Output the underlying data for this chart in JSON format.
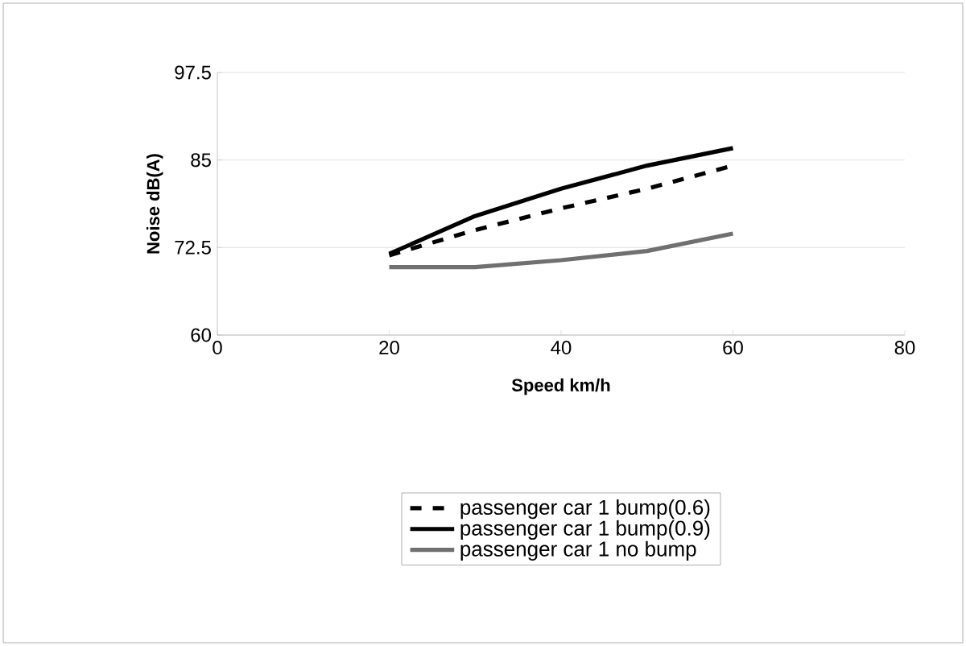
{
  "chart_data": {
    "type": "line",
    "xlabel": "Speed km/h",
    "ylabel": "Noise dB(A)",
    "xlim": [
      0,
      80
    ],
    "xticks": [
      0,
      20,
      40,
      60,
      80
    ],
    "ylim": [
      60,
      97.5
    ],
    "yticks": [
      60,
      72.5,
      85,
      97.5
    ],
    "grid": "y",
    "legend": "bottom",
    "series": [
      {
        "name": "passenger car 1 bump(0.6)",
        "color": "#000000",
        "line_style": "dashed",
        "x": [
          20,
          30,
          40,
          50,
          60
        ],
        "values": [
          71.4,
          75.0,
          78.1,
          80.9,
          84.2
        ]
      },
      {
        "name": "passenger car 1 bump(0.9)",
        "color": "#000000",
        "line_style": "solid",
        "x": [
          20,
          30,
          40,
          50,
          60
        ],
        "values": [
          71.6,
          77.0,
          80.9,
          84.2,
          86.7
        ]
      },
      {
        "name": "passenger car 1 no bump",
        "color": "#707070",
        "line_style": "solid",
        "x": [
          20,
          30,
          40,
          50,
          60
        ],
        "values": [
          69.7,
          69.7,
          70.7,
          72.0,
          74.5
        ]
      }
    ]
  }
}
